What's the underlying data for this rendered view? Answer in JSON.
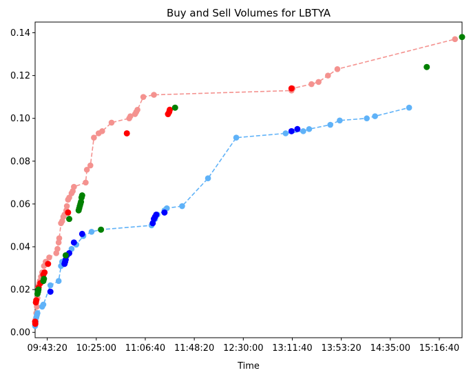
{
  "chart_data": {
    "type": "line",
    "title": "Buy and Sell Volumes for LBTYA",
    "xlabel": "Time",
    "ylabel": "",
    "x_unit": "time of day",
    "xlim": [
      "09:33:00",
      "15:36:00"
    ],
    "ylim": [
      -0.0025,
      0.145
    ],
    "x_ticks": [
      "09:43:20",
      "10:25:00",
      "11:06:40",
      "11:48:20",
      "12:30:00",
      "13:11:40",
      "13:53:20",
      "14:35:00",
      "15:16:40"
    ],
    "y_ticks": [
      "0.00",
      "0.02",
      "0.04",
      "0.06",
      "0.08",
      "0.10",
      "0.12",
      "0.14"
    ],
    "grid": false,
    "legend": "none",
    "colors": {
      "sell_cumulative": "#f4928f",
      "buy_cumulative": "#5fb2f8",
      "sell_marker": "#ff0000",
      "buy_marker": "#0000ff",
      "other_marker": "#008000"
    },
    "series": [
      {
        "style": "dashed line with markers",
        "color": "#f4928f",
        "points": [
          [
            "09:33:00",
            0.004
          ],
          [
            "09:33:20",
            0.006
          ],
          [
            "09:34:00",
            0.009
          ],
          [
            "09:34:30",
            0.012
          ],
          [
            "09:35:00",
            0.016
          ],
          [
            "09:35:30",
            0.021
          ],
          [
            "09:36:00",
            0.022
          ],
          [
            "09:36:30",
            0.023
          ],
          [
            "09:37:00",
            0.024
          ],
          [
            "09:38:00",
            0.026
          ],
          [
            "09:39:00",
            0.028
          ],
          [
            "09:40:30",
            0.031
          ],
          [
            "09:42:00",
            0.033
          ],
          [
            "09:45:00",
            0.035
          ],
          [
            "09:51:00",
            0.037
          ],
          [
            "09:52:00",
            0.039
          ],
          [
            "09:53:00",
            0.042
          ],
          [
            "09:53:30",
            0.044
          ],
          [
            "09:55:00",
            0.051
          ],
          [
            "09:56:00",
            0.052
          ],
          [
            "09:57:00",
            0.054
          ],
          [
            "09:58:00",
            0.055
          ],
          [
            "09:59:30",
            0.057
          ],
          [
            "10:00:00",
            0.059
          ],
          [
            "10:01:00",
            0.062
          ],
          [
            "10:02:00",
            0.063
          ],
          [
            "10:04:00",
            0.065
          ],
          [
            "10:05:00",
            0.066
          ],
          [
            "10:06:00",
            0.068
          ],
          [
            "10:16:00",
            0.07
          ],
          [
            "10:17:00",
            0.076
          ],
          [
            "10:20:00",
            0.078
          ],
          [
            "10:23:00",
            0.091
          ],
          [
            "10:27:00",
            0.093
          ],
          [
            "10:30:00",
            0.094
          ],
          [
            "10:38:00",
            0.098
          ],
          [
            "10:53:00",
            0.1
          ],
          [
            "10:54:00",
            0.101
          ],
          [
            "10:58:00",
            0.102
          ],
          [
            "10:59:00",
            0.103
          ],
          [
            "11:00:00",
            0.104
          ],
          [
            "11:05:00",
            0.11
          ],
          [
            "11:14:00",
            0.111
          ],
          [
            "13:11:00",
            0.113
          ],
          [
            "13:12:00",
            0.114
          ],
          [
            "13:28:00",
            0.116
          ],
          [
            "13:34:00",
            0.117
          ],
          [
            "13:42:00",
            0.12
          ],
          [
            "13:50:00",
            0.123
          ],
          [
            "15:30:00",
            0.137
          ]
        ]
      },
      {
        "style": "dashed line with markers",
        "color": "#5fb2f8",
        "points": [
          [
            "09:33:00",
            0.003
          ],
          [
            "09:33:30",
            0.005
          ],
          [
            "09:34:00",
            0.007
          ],
          [
            "09:34:30",
            0.008
          ],
          [
            "09:35:00",
            0.009
          ],
          [
            "09:39:00",
            0.012
          ],
          [
            "09:40:00",
            0.013
          ],
          [
            "09:46:00",
            0.022
          ],
          [
            "09:53:00",
            0.024
          ],
          [
            "09:55:00",
            0.031
          ],
          [
            "09:56:00",
            0.033
          ],
          [
            "10:00:00",
            0.036
          ],
          [
            "10:04:00",
            0.039
          ],
          [
            "10:08:00",
            0.041
          ],
          [
            "10:14:00",
            0.045
          ],
          [
            "10:21:00",
            0.047
          ],
          [
            "10:29:00",
            0.048
          ],
          [
            "11:12:00",
            0.05
          ],
          [
            "11:13:00",
            0.051
          ],
          [
            "11:15:00",
            0.053
          ],
          [
            "11:17:00",
            0.055
          ],
          [
            "11:23:00",
            0.057
          ],
          [
            "11:25:00",
            0.058
          ],
          [
            "11:38:00",
            0.059
          ],
          [
            "12:00:00",
            0.072
          ],
          [
            "12:24:00",
            0.091
          ],
          [
            "13:06:00",
            0.093
          ],
          [
            "13:21:00",
            0.094
          ],
          [
            "13:26:00",
            0.095
          ],
          [
            "13:44:00",
            0.097
          ],
          [
            "13:52:00",
            0.099
          ],
          [
            "14:15:00",
            0.1
          ],
          [
            "14:22:00",
            0.101
          ],
          [
            "14:51:00",
            0.105
          ]
        ]
      }
    ],
    "markers": [
      {
        "color": "#ff0000",
        "points": [
          [
            "09:33:00",
            0.005
          ],
          [
            "09:33:10",
            0.004
          ],
          [
            "09:33:40",
            0.014
          ],
          [
            "09:34:00",
            0.015
          ],
          [
            "09:36:00",
            0.021
          ],
          [
            "09:37:30",
            0.023
          ],
          [
            "09:40:00",
            0.027
          ],
          [
            "09:41:00",
            0.028
          ],
          [
            "09:44:00",
            0.032
          ],
          [
            "10:01:00",
            0.056
          ],
          [
            "10:51:00",
            0.093
          ],
          [
            "11:26:00",
            0.102
          ],
          [
            "11:27:00",
            0.103
          ],
          [
            "11:27:30",
            0.104
          ],
          [
            "13:11:00",
            0.114
          ]
        ]
      },
      {
        "color": "#0000ff",
        "points": [
          [
            "09:46:00",
            0.019
          ],
          [
            "09:58:00",
            0.032
          ],
          [
            "09:58:30",
            0.033
          ],
          [
            "09:59:00",
            0.034
          ],
          [
            "10:00:00",
            0.036
          ],
          [
            "10:02:00",
            0.037
          ],
          [
            "10:06:00",
            0.042
          ],
          [
            "10:13:00",
            0.046
          ],
          [
            "11:13:00",
            0.051
          ],
          [
            "11:14:00",
            0.053
          ],
          [
            "11:15:00",
            0.054
          ],
          [
            "11:16:00",
            0.055
          ],
          [
            "11:23:00",
            0.056
          ],
          [
            "13:11:00",
            0.094
          ],
          [
            "13:16:00",
            0.095
          ]
        ]
      },
      {
        "color": "#008000",
        "points": [
          [
            "09:35:00",
            0.018
          ],
          [
            "09:35:30",
            0.019
          ],
          [
            "09:35:50",
            0.02
          ],
          [
            "09:40:00",
            0.024
          ],
          [
            "09:40:30",
            0.025
          ],
          [
            "09:59:00",
            0.036
          ],
          [
            "10:02:00",
            0.053
          ],
          [
            "10:10:00",
            0.057
          ],
          [
            "10:10:30",
            0.058
          ],
          [
            "10:11:00",
            0.059
          ],
          [
            "10:11:30",
            0.06
          ],
          [
            "10:12:00",
            0.061
          ],
          [
            "10:12:30",
            0.063
          ],
          [
            "10:13:00",
            0.064
          ],
          [
            "10:29:00",
            0.048
          ],
          [
            "11:32:00",
            0.105
          ],
          [
            "15:06:00",
            0.124
          ],
          [
            "15:36:00",
            0.138
          ]
        ]
      }
    ]
  }
}
